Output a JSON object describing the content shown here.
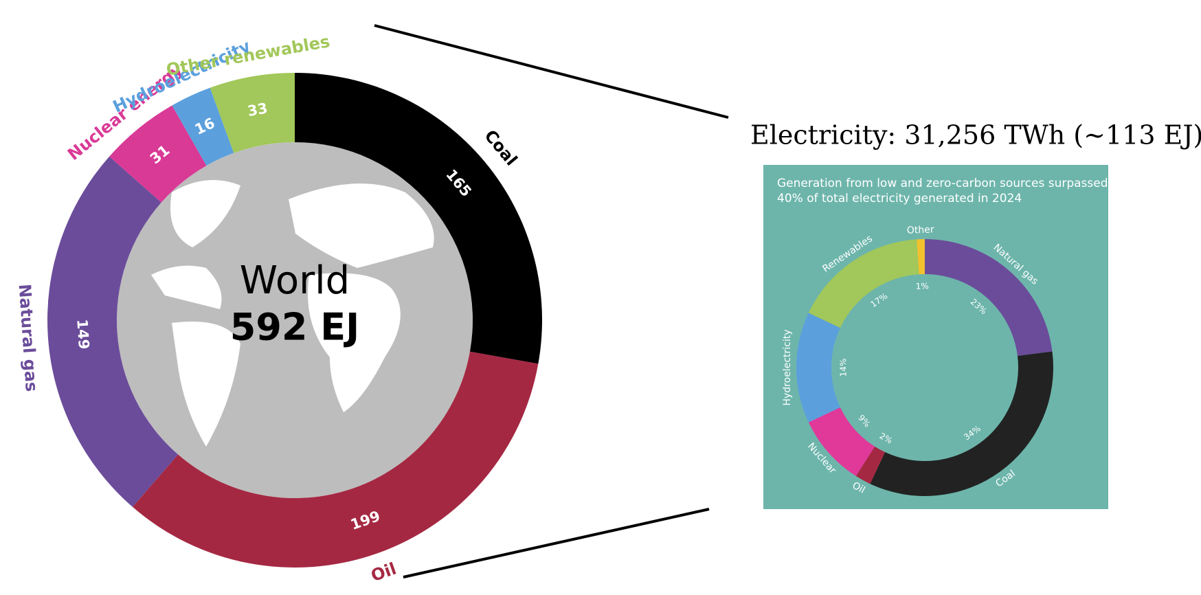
{
  "chart_data": [
    {
      "type": "donut",
      "center_label": "World",
      "total_label": "592 EJ",
      "categories": [
        "Coal",
        "Oil",
        "Natural gas",
        "Nuclear energy",
        "Hydroelectricity",
        "Other renewables"
      ],
      "values": [
        165,
        199,
        149,
        31,
        16,
        33
      ],
      "colors": [
        "#000000",
        "#a52842",
        "#6b4c9a",
        "#d93a96",
        "#5ba0dd",
        "#a2c75a"
      ]
    },
    {
      "type": "donut",
      "title": "Electricity: 31,256 TWh (~113 EJ)",
      "subtitle": [
        "Generation from low and zero-carbon sources surpassed",
        "40% of total electricity generated in 2024"
      ],
      "categories": [
        "Natural gas",
        "Coal",
        "Oil",
        "Nuclear",
        "Hydroelectricity",
        "Renewables",
        "Other"
      ],
      "values": [
        23,
        34,
        2,
        9,
        14,
        17,
        1
      ],
      "value_labels": [
        "23%",
        "34%",
        "2%",
        "9%",
        "14%",
        "17%",
        "1%"
      ],
      "colors": [
        "#6b4c9a",
        "#222222",
        "#a52842",
        "#e0399a",
        "#5ba0dd",
        "#a2c75a",
        "#f2c12e"
      ]
    }
  ]
}
